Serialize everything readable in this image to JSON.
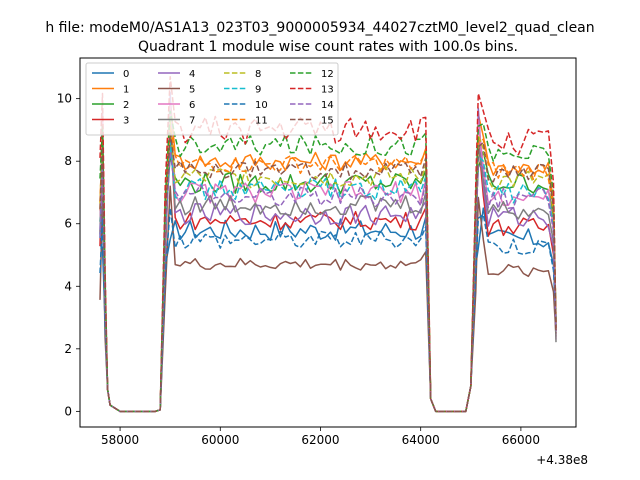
{
  "figure": {
    "suptitle": "h file: modeM0/AS1A13_023T03_9000005934_44027cztM0_level2_quad_clean",
    "title": "Quadrant 1 module wise count rates with 100.0s bins.",
    "offset_label": "+4.38e8"
  },
  "chart_data": {
    "type": "line",
    "title": "Quadrant 1 module wise count rates with 100.0s bins.",
    "xlabel": "",
    "ylabel": "",
    "x_offset": 438000000,
    "xlim": [
      57200,
      67100
    ],
    "ylim": [
      -0.5,
      11.3
    ],
    "xticks": [
      58000,
      60000,
      62000,
      64000,
      66000
    ],
    "xtick_labels": [
      "58000",
      "60000",
      "62000",
      "64000",
      "66000"
    ],
    "yticks": [
      0,
      2,
      4,
      6,
      8,
      10
    ],
    "ytick_labels": [
      "0",
      "2",
      "4",
      "6",
      "8",
      "10"
    ],
    "grid": false,
    "legend_placement": "upper-left",
    "legend_columns": 4,
    "segments": [
      {
        "x_start": 57600,
        "x_end": 58000
      },
      {
        "x_start": 58000,
        "x_end": 58800
      },
      {
        "x_start": 58800,
        "x_end": 64200
      },
      {
        "x_start": 64200,
        "x_end": 65000
      },
      {
        "x_start": 65000,
        "x_end": 66700
      }
    ],
    "series": [
      {
        "name": "0",
        "color": "#1f77b4",
        "dashed": false,
        "level_a": 5.8,
        "level_b": 5.5,
        "spike": 5.5,
        "jitter": 0.35
      },
      {
        "name": "1",
        "color": "#ff7f0e",
        "dashed": false,
        "level_a": 8.0,
        "level_b": 7.8,
        "spike": 10.0,
        "jitter": 0.3
      },
      {
        "name": "2",
        "color": "#2ca02c",
        "dashed": false,
        "level_a": 7.3,
        "level_b": 7.3,
        "spike": 8.2,
        "jitter": 0.35
      },
      {
        "name": "3",
        "color": "#d62728",
        "dashed": false,
        "level_a": 6.1,
        "level_b": 5.9,
        "spike": 9.2,
        "jitter": 0.3
      },
      {
        "name": "4",
        "color": "#9467bd",
        "dashed": false,
        "level_a": 6.3,
        "level_b": 6.2,
        "spike": 10.2,
        "jitter": 0.35
      },
      {
        "name": "5",
        "color": "#8c564b",
        "dashed": false,
        "level_a": 4.7,
        "level_b": 4.5,
        "spike": 7.2,
        "jitter": 0.2
      },
      {
        "name": "6",
        "color": "#e377c2",
        "dashed": false,
        "level_a": 7.0,
        "level_b": 6.8,
        "spike": 9.8,
        "jitter": 0.35
      },
      {
        "name": "7",
        "color": "#7f7f7f",
        "dashed": false,
        "level_a": 6.6,
        "level_b": 6.4,
        "spike": 9.0,
        "jitter": 0.35
      },
      {
        "name": "8",
        "color": "#bcbd22",
        "dashed": true,
        "level_a": 7.5,
        "level_b": 7.4,
        "spike": 9.3,
        "jitter": 0.35
      },
      {
        "name": "9",
        "color": "#17becf",
        "dashed": true,
        "level_a": 7.1,
        "level_b": 7.0,
        "spike": 8.6,
        "jitter": 0.35
      },
      {
        "name": "10",
        "color": "#1f77b4",
        "dashed": true,
        "level_a": 5.5,
        "level_b": 5.3,
        "spike": 6.5,
        "jitter": 0.3
      },
      {
        "name": "11",
        "color": "#ff7f0e",
        "dashed": true,
        "level_a": 7.9,
        "level_b": 7.7,
        "spike": 9.1,
        "jitter": 0.3
      },
      {
        "name": "12",
        "color": "#2ca02c",
        "dashed": true,
        "level_a": 8.5,
        "level_b": 8.2,
        "spike": 9.6,
        "jitter": 0.35
      },
      {
        "name": "13",
        "color": "#d62728",
        "dashed": true,
        "level_a": 9.0,
        "level_b": 8.6,
        "spike": 10.7,
        "jitter": 0.45
      },
      {
        "name": "14",
        "color": "#9467bd",
        "dashed": true,
        "level_a": 6.9,
        "level_b": 6.8,
        "spike": 8.3,
        "jitter": 0.35
      },
      {
        "name": "15",
        "color": "#8c564b",
        "dashed": true,
        "level_a": 7.7,
        "level_b": 7.6,
        "spike": 8.9,
        "jitter": 0.3
      }
    ]
  }
}
